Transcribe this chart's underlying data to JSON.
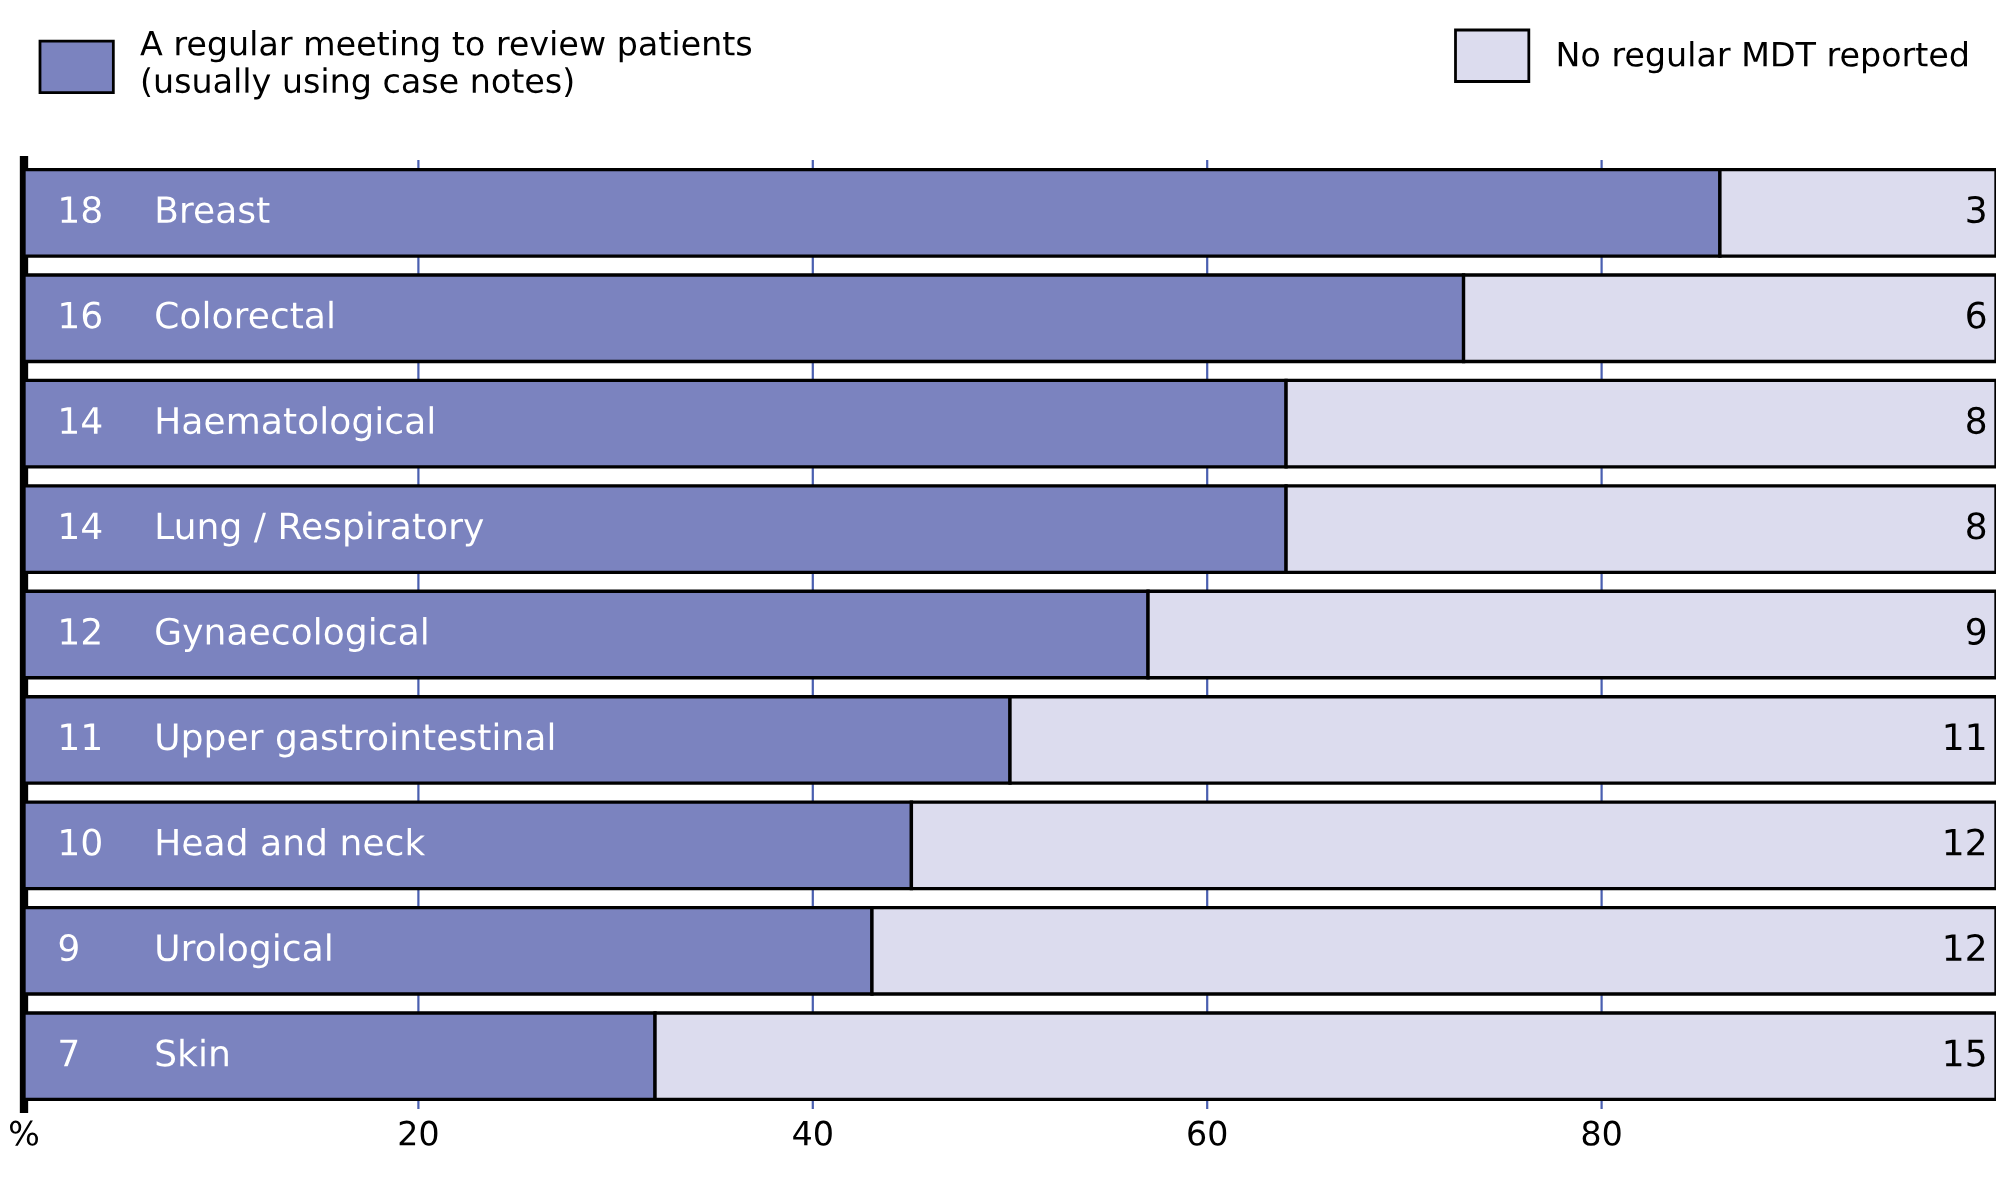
{
  "chart_data": {
    "type": "bar",
    "orientation": "horizontal",
    "stacked": true,
    "categories": [
      "Breast",
      "Colorectal",
      "Haematological",
      "Lung / Respiratory",
      "Gynaecological",
      "Upper gastrointestinal",
      "Head and neck",
      "Urological",
      "Skin"
    ],
    "series": [
      {
        "name": "A regular meeting to review patients\n(usually using case notes)",
        "color": "#7b83bf",
        "values": [
          86,
          73,
          64,
          64,
          57,
          50,
          45,
          43,
          32
        ]
      },
      {
        "name": "No regular MDT reported",
        "color": "#dcdcee",
        "values": [
          14,
          27,
          36,
          36,
          43,
          50,
          55,
          57,
          68
        ]
      }
    ],
    "annotations": [
      {
        "text": "18",
        "y": "Breast"
      },
      {
        "text": "16",
        "y": "Colorectal"
      },
      {
        "text": "14",
        "y": "Haematological"
      },
      {
        "text": "14",
        "y": "Lung / Respiratory"
      },
      {
        "text": "12",
        "y": "Gynaecological"
      },
      {
        "text": "11",
        "y": "Upper gastrointestinal"
      },
      {
        "text": "10",
        "y": "Head and neck"
      },
      {
        "text": "9",
        "y": "Urological"
      },
      {
        "text": "7",
        "y": "Skin"
      },
      {
        "text": "3",
        "y": "Breast"
      },
      {
        "text": "6",
        "y": "Colorectal"
      },
      {
        "text": "8",
        "y": "Haematological"
      },
      {
        "text": "8",
        "y": "Lung / Respiratory"
      },
      {
        "text": "9",
        "y": "Gynaecological"
      },
      {
        "text": "11",
        "y": "Upper gastrointestinal"
      },
      {
        "text": "12",
        "y": "Head and neck"
      },
      {
        "text": "12",
        "y": "Urological"
      },
      {
        "text": "15",
        "y": "Skin"
      }
    ],
    "xlim": [
      0,
      100
    ],
    "xticks": [
      {
        "value": 0,
        "label": "%"
      },
      20,
      40,
      60,
      80
    ],
    "grid": "x",
    "legend": "top"
  }
}
